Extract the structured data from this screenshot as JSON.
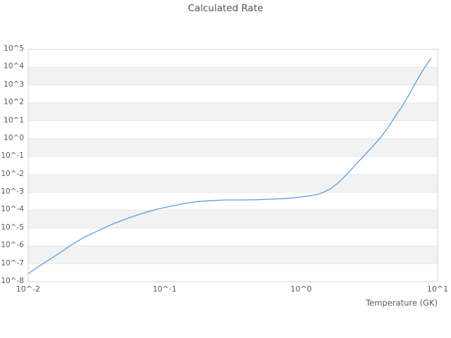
{
  "style": {
    "background": "#ffffff",
    "band_color": "#f2f2f2",
    "grid_color": "#e8e8e8",
    "frame_color": "#d4d4d4",
    "tick_text_color": "#5a5a5a",
    "title_color": "#535353",
    "line_color": "#5f9edd"
  },
  "chart_data": {
    "type": "line",
    "title": "Calculated Rate",
    "xlabel": "Temperature (GK)",
    "ylabel": "",
    "x_scale": "log",
    "y_scale": "log",
    "xlim_log10": [
      -2,
      1
    ],
    "ylim_log10": [
      -8,
      5
    ],
    "x_tick_labels": [
      "10^-2",
      "10^-1",
      "10^0",
      "10^1"
    ],
    "x_tick_log10": [
      -2,
      -1,
      0,
      1
    ],
    "y_tick_labels": [
      "10^5",
      "10^4",
      "10^3",
      "10^2",
      "10^1",
      "10^0",
      "10^-1",
      "10^-2",
      "10^-3",
      "10^-4",
      "10^-5",
      "10^-6",
      "10^-7",
      "10^-8"
    ],
    "y_tick_log10": [
      5,
      4,
      3,
      2,
      1,
      0,
      -1,
      -2,
      -3,
      -4,
      -5,
      -6,
      -7,
      -8
    ],
    "grid": true,
    "alternating_bands": true,
    "band_white_first_from_top": true,
    "legend": "none",
    "series": [
      {
        "name": "Calculated Rate",
        "color": "#5f9edd",
        "points_log10": [
          [
            -2.0,
            -7.55
          ],
          [
            -1.9,
            -7.03
          ],
          [
            -1.79,
            -6.5
          ],
          [
            -1.69,
            -5.98
          ],
          [
            -1.59,
            -5.52
          ],
          [
            -1.48,
            -5.12
          ],
          [
            -1.38,
            -4.77
          ],
          [
            -1.28,
            -4.48
          ],
          [
            -1.17,
            -4.2
          ],
          [
            -1.07,
            -3.97
          ],
          [
            -0.97,
            -3.8
          ],
          [
            -0.86,
            -3.63
          ],
          [
            -0.76,
            -3.52
          ],
          [
            -0.66,
            -3.46
          ],
          [
            -0.55,
            -3.43
          ],
          [
            -0.45,
            -3.43
          ],
          [
            -0.34,
            -3.42
          ],
          [
            -0.24,
            -3.39
          ],
          [
            -0.14,
            -3.36
          ],
          [
            -0.04,
            -3.3
          ],
          [
            0.06,
            -3.2
          ],
          [
            0.12,
            -3.12
          ],
          [
            0.17,
            -2.98
          ],
          [
            0.22,
            -2.78
          ],
          [
            0.27,
            -2.48
          ],
          [
            0.32,
            -2.12
          ],
          [
            0.37,
            -1.7
          ],
          [
            0.42,
            -1.28
          ],
          [
            0.48,
            -0.8
          ],
          [
            0.53,
            -0.38
          ],
          [
            0.58,
            0.05
          ],
          [
            0.63,
            0.55
          ],
          [
            0.66,
            0.9
          ],
          [
            0.71,
            1.48
          ],
          [
            0.74,
            1.8
          ],
          [
            0.79,
            2.45
          ],
          [
            0.84,
            3.15
          ],
          [
            0.89,
            3.8
          ],
          [
            0.95,
            4.49
          ]
        ]
      }
    ]
  }
}
